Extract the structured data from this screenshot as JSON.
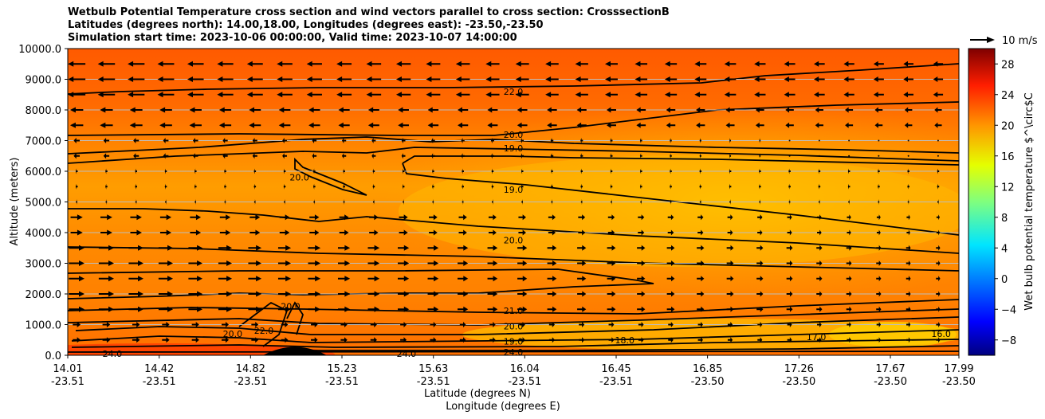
{
  "chart_data": {
    "type": "contour",
    "title_lines": [
      "Wetbulb Potential Temperature cross section and wind vectors parallel to cross section: CrosssectionB",
      "Latitudes (degrees north): 14.00,18.00, Longitudes (degrees east): -23.50,-23.50",
      "Simulation start time: 2023-10-06 00:00:00, Valid time: 2023-10-07 14:00:00"
    ],
    "ylabel": "Altitude (meters)",
    "xlabel_lat": "Latitude (degrees N)",
    "xlabel_lon": "Longitude (degrees E)",
    "ylim": [
      0,
      10000
    ],
    "y_ticks": [
      "0.0",
      "1000.0",
      "2000.0",
      "3000.0",
      "4000.0",
      "5000.0",
      "6000.0",
      "7000.0",
      "8000.0",
      "9000.0",
      "10000.0"
    ],
    "y_tick_values": [
      0,
      1000,
      2000,
      3000,
      4000,
      5000,
      6000,
      7000,
      8000,
      9000,
      10000
    ],
    "x_tick_fraction": [
      0.0,
      0.1026,
      0.2051,
      0.3077,
      0.4103,
      0.5128,
      0.6154,
      0.7179,
      0.8205,
      0.9231,
      1.0
    ],
    "x_ticks_lat": [
      "14.01",
      "14.42",
      "14.82",
      "15.23",
      "15.63",
      "16.04",
      "16.45",
      "16.85",
      "17.26",
      "17.67",
      "17.99"
    ],
    "x_ticks_lon": [
      "-23.51",
      "-23.51",
      "-23.51",
      "-23.51",
      "-23.51",
      "-23.51",
      "-23.51",
      "-23.50",
      "-23.50",
      "-23.50",
      "-23.50"
    ],
    "colorbar": {
      "label": "Wet bulb potential temperature $^\\circ$C",
      "range": [
        -10,
        30
      ],
      "ticks": [
        "−8",
        "−4",
        "0",
        "4",
        "8",
        "12",
        "16",
        "20",
        "24",
        "28"
      ],
      "tick_values": [
        -8,
        -4,
        0,
        4,
        8,
        12,
        16,
        20,
        24,
        28
      ]
    },
    "quiver_key": {
      "label": "10 m/s"
    },
    "contour_labels": [
      {
        "text": "22.0",
        "x": 0.5,
        "y": 8600
      },
      {
        "text": "20.0",
        "x": 0.5,
        "y": 7200
      },
      {
        "text": "19.0",
        "x": 0.5,
        "y": 6750
      },
      {
        "text": "20.0",
        "x": 0.26,
        "y": 5800
      },
      {
        "text": "19.0",
        "x": 0.5,
        "y": 5400
      },
      {
        "text": "20.0",
        "x": 0.5,
        "y": 3750
      },
      {
        "text": "21.0",
        "x": 0.5,
        "y": 1450
      },
      {
        "text": "20.0",
        "x": 0.5,
        "y": 950
      },
      {
        "text": "19.0",
        "x": 0.5,
        "y": 450
      },
      {
        "text": "20.0",
        "x": 0.185,
        "y": 700
      },
      {
        "text": "22.0",
        "x": 0.22,
        "y": 800
      },
      {
        "text": "20.0",
        "x": 0.25,
        "y": 1600
      },
      {
        "text": "24.0",
        "x": 0.05,
        "y": 50
      },
      {
        "text": "24.0",
        "x": 0.38,
        "y": 50
      },
      {
        "text": "24.0",
        "x": 0.5,
        "y": 100
      },
      {
        "text": "18.0",
        "x": 0.625,
        "y": 500
      },
      {
        "text": "17.0",
        "x": 0.84,
        "y": 600
      },
      {
        "text": "16.0",
        "x": 0.98,
        "y": 700
      }
    ]
  }
}
